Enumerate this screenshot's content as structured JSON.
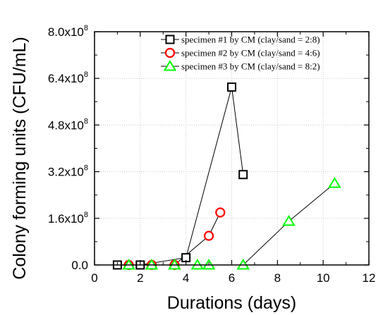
{
  "chart_data": {
    "type": "line",
    "title": "",
    "xlabel": "Durations (days)",
    "ylabel": "Colony forming units (CFU/mL)",
    "xlim": [
      0,
      12
    ],
    "ylim": [
      0,
      800000000
    ],
    "xticks": [
      0,
      2,
      4,
      6,
      8,
      10,
      12
    ],
    "yticks": [
      0,
      160000000,
      320000000,
      480000000,
      640000000,
      800000000
    ],
    "ytick_labels": [
      {
        "mant": "0.0",
        "exp": ""
      },
      {
        "mant": "1.6x10",
        "exp": "8"
      },
      {
        "mant": "3.2x10",
        "exp": "8"
      },
      {
        "mant": "4.8x10",
        "exp": "8"
      },
      {
        "mant": "6.4x10",
        "exp": "8"
      },
      {
        "mant": "8.0x10",
        "exp": "8"
      }
    ],
    "grid": true,
    "legend_position": "top-right",
    "series": [
      {
        "name": "specimen #1 by CM (clay/sand = 2:8)",
        "marker": "square",
        "color": "#000000",
        "x": [
          1,
          2,
          4,
          6,
          6.5
        ],
        "y": [
          0,
          0,
          25000000,
          610000000,
          310000000
        ]
      },
      {
        "name": "specimen #2 by CM (clay/sand = 4:6)",
        "marker": "circle",
        "color": "#ff0000",
        "x": [
          1.5,
          2.5,
          3.5,
          5,
          5.5
        ],
        "y": [
          0,
          0,
          0,
          100000000,
          180000000
        ]
      },
      {
        "name": "specimen #3 by CM (clay/sand = 8:2)",
        "marker": "triangle",
        "color": "#00ff00",
        "x": [
          1.5,
          2.5,
          3.5,
          4.5,
          5,
          6.5,
          8.5,
          10.5
        ],
        "y": [
          0,
          0,
          0,
          0,
          0,
          0,
          150000000,
          280000000
        ]
      }
    ]
  }
}
